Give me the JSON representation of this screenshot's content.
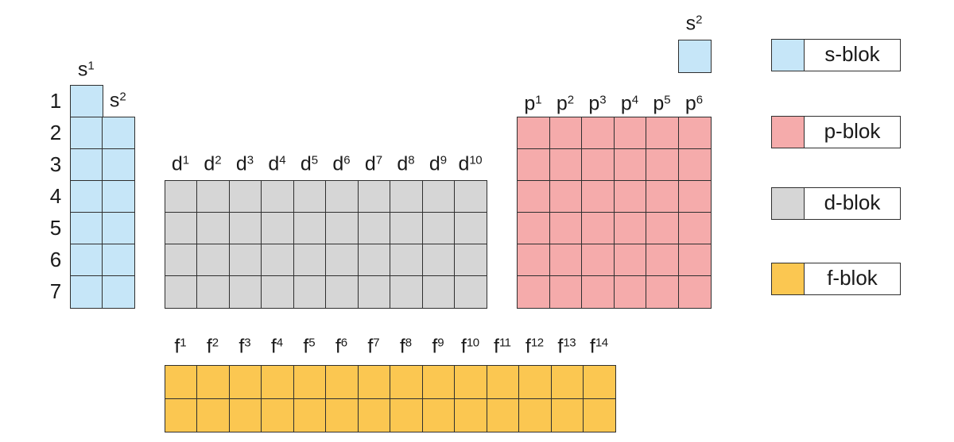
{
  "colors": {
    "s_block": "#c6e6f8",
    "p_block": "#f5abab",
    "d_block": "#d6d6d6",
    "f_block": "#fbc751",
    "grid_stroke": "#2f2f2f",
    "text": "#1a1a1a",
    "background": "#ffffff"
  },
  "period_row_labels": [
    "1",
    "2",
    "3",
    "4",
    "5",
    "6",
    "7"
  ],
  "s_block": {
    "s1_rows": 7,
    "s2_rows": 6,
    "col_labels": [
      {
        "base": "s",
        "sup": "1"
      },
      {
        "base": "s",
        "sup": "2"
      }
    ]
  },
  "helium_cell": {
    "label": {
      "base": "s",
      "sup": "2"
    }
  },
  "d_block": {
    "rows": 4,
    "col_labels": [
      {
        "base": "d",
        "sup": "1"
      },
      {
        "base": "d",
        "sup": "2"
      },
      {
        "base": "d",
        "sup": "3"
      },
      {
        "base": "d",
        "sup": "4"
      },
      {
        "base": "d",
        "sup": "5"
      },
      {
        "base": "d",
        "sup": "6"
      },
      {
        "base": "d",
        "sup": "7"
      },
      {
        "base": "d",
        "sup": "8"
      },
      {
        "base": "d",
        "sup": "9"
      },
      {
        "base": "d",
        "sup": "10"
      }
    ]
  },
  "p_block": {
    "rows": 6,
    "col_labels": [
      {
        "base": "p",
        "sup": "1"
      },
      {
        "base": "p",
        "sup": "2"
      },
      {
        "base": "p",
        "sup": "3"
      },
      {
        "base": "p",
        "sup": "4"
      },
      {
        "base": "p",
        "sup": "5"
      },
      {
        "base": "p",
        "sup": "6"
      }
    ]
  },
  "f_block": {
    "rows": 2,
    "col_labels": [
      {
        "base": "f",
        "sup": "1"
      },
      {
        "base": "f",
        "sup": "2"
      },
      {
        "base": "f",
        "sup": "3"
      },
      {
        "base": "f",
        "sup": "4"
      },
      {
        "base": "f",
        "sup": "5"
      },
      {
        "base": "f",
        "sup": "6"
      },
      {
        "base": "f",
        "sup": "7"
      },
      {
        "base": "f",
        "sup": "8"
      },
      {
        "base": "f",
        "sup": "9"
      },
      {
        "base": "f",
        "sup": "10"
      },
      {
        "base": "f",
        "sup": "11"
      },
      {
        "base": "f",
        "sup": "12"
      },
      {
        "base": "f",
        "sup": "13"
      },
      {
        "base": "f",
        "sup": "14"
      }
    ]
  },
  "legend": {
    "items": [
      {
        "label": "s-blok",
        "color_key": "s_block"
      },
      {
        "label": "p-blok",
        "color_key": "p_block"
      },
      {
        "label": "d-blok",
        "color_key": "d_block"
      },
      {
        "label": "f-blok",
        "color_key": "f_block"
      }
    ]
  }
}
